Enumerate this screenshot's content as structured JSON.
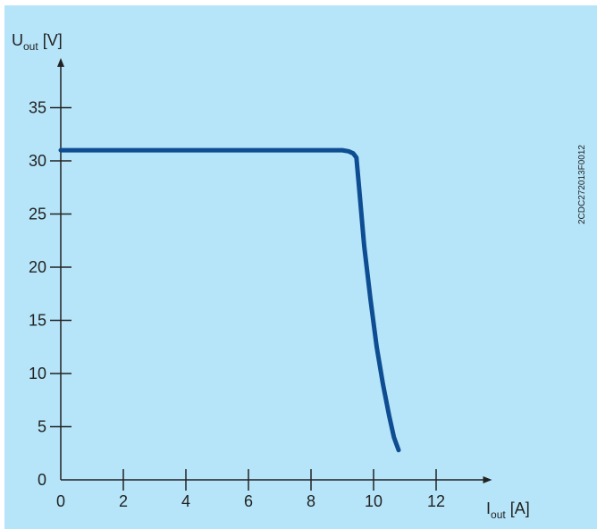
{
  "colors": {
    "background": "#b6e5f9",
    "axis": "#222222",
    "curve": "#0e4d92"
  },
  "figure_code": "2CDC272013F0012",
  "chart_data": {
    "type": "line",
    "x_axis": {
      "symbol": "I",
      "subscript": "out",
      "unit": " [A]",
      "range": [
        0,
        13.5
      ],
      "ticks": [
        0,
        2,
        4,
        6,
        8,
        10,
        12
      ]
    },
    "y_axis": {
      "symbol": "U",
      "subscript": "out",
      "unit": " [V]",
      "range": [
        0,
        39
      ],
      "ticks": [
        0,
        5,
        10,
        15,
        20,
        25,
        30,
        35
      ]
    },
    "grid": false,
    "legend": "none",
    "series": [
      {
        "x": [
          0,
          2,
          4,
          6,
          8,
          9.0,
          9.2,
          9.35,
          9.45,
          9.55,
          9.7,
          9.9,
          10.1,
          10.3,
          10.5,
          10.65,
          10.8
        ],
        "y": [
          31,
          31,
          31,
          31,
          31,
          31,
          30.9,
          30.7,
          30.3,
          27,
          22,
          17,
          12.5,
          9,
          6,
          4,
          2.8
        ]
      }
    ]
  }
}
